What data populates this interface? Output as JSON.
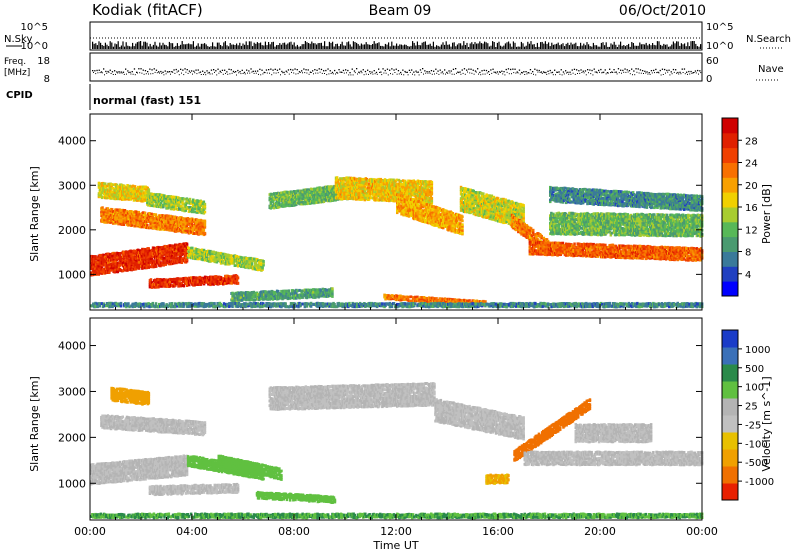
{
  "header": {
    "station": "Kodiak (fitACF)",
    "beam": "Beam 09",
    "date": "06/Oct/2010"
  },
  "strips": {
    "nsky_label": "N.Sky",
    "nsearch_label": "N.Search",
    "noise_ticks": [
      "10^5",
      "10^0"
    ],
    "freq_label_1": "Freq.",
    "freq_label_2": "[MHz]",
    "freq_ticks": [
      "18",
      "8"
    ],
    "nave_label": "Nave",
    "nave_ticks": [
      "60",
      "0"
    ],
    "cpid_label": "CPID",
    "cpid_value": "normal (fast) 151"
  },
  "colors": {
    "power_scale": [
      "#0000ff",
      "#2040c0",
      "#3a7a9a",
      "#4a9a70",
      "#58b858",
      "#a8cc30",
      "#f0d000",
      "#f8a000",
      "#f87000",
      "#f04000",
      "#e02000",
      "#d00000"
    ],
    "velocity_scale": [
      "#1a3cc8",
      "#3a70b8",
      "#2a8a4a",
      "#60c040",
      "#b4b4b4",
      "#c0c0c0",
      "#e8c000",
      "#f0a000",
      "#f07000",
      "#e82000"
    ]
  },
  "chart_data": [
    {
      "type": "heatmap",
      "panel": "power",
      "xlabel": "",
      "ylabel": "Slant Range [km]",
      "x_ticks": [
        "00:00",
        "04:00",
        "08:00",
        "12:00",
        "16:00",
        "20:00",
        "00:00"
      ],
      "xlim_hours": [
        0,
        24
      ],
      "y_ticks": [
        "1000",
        "2000",
        "3000",
        "4000"
      ],
      "ylim": [
        200,
        4600
      ],
      "colorbar_label": "Power [dB]",
      "colorbar_ticks": [
        "4",
        "8",
        "12",
        "16",
        "20",
        "24",
        "28"
      ],
      "clim": [
        0,
        32
      ],
      "regions": [
        {
          "t0": 0.0,
          "t1": 3.8,
          "r_center_start": 1200,
          "r_center_end": 1500,
          "thick": 450,
          "value": 27
        },
        {
          "t0": 3.8,
          "t1": 6.8,
          "r_center_start": 1500,
          "r_center_end": 1200,
          "thick": 250,
          "value": 14
        },
        {
          "t0": 2.3,
          "t1": 5.8,
          "r_center_start": 800,
          "r_center_end": 900,
          "thick": 200,
          "value": 27
        },
        {
          "t0": 0.4,
          "t1": 4.5,
          "r_center_start": 2350,
          "r_center_end": 2050,
          "thick": 350,
          "value": 22
        },
        {
          "t0": 0.3,
          "t1": 2.3,
          "r_center_start": 2900,
          "r_center_end": 2800,
          "thick": 350,
          "value": 17
        },
        {
          "t0": 2.2,
          "t1": 4.5,
          "r_center_start": 2700,
          "r_center_end": 2500,
          "thick": 300,
          "value": 14
        },
        {
          "t0": 5.5,
          "t1": 9.5,
          "r_center_start": 500,
          "r_center_end": 600,
          "thick": 200,
          "value": 10
        },
        {
          "t0": 7.0,
          "t1": 10.5,
          "r_center_start": 2650,
          "r_center_end": 2900,
          "thick": 350,
          "value": 12
        },
        {
          "t0": 9.6,
          "t1": 13.4,
          "r_center_start": 2950,
          "r_center_end": 2850,
          "thick": 500,
          "value": 18
        },
        {
          "t0": 12.0,
          "t1": 14.6,
          "r_center_start": 2600,
          "r_center_end": 2100,
          "thick": 450,
          "value": 20
        },
        {
          "t0": 14.5,
          "t1": 17.0,
          "r_center_start": 2700,
          "r_center_end": 2300,
          "thick": 550,
          "value": 16
        },
        {
          "t0": 11.5,
          "t1": 15.5,
          "r_center_start": 500,
          "r_center_end": 350,
          "thick": 120,
          "value": 22
        },
        {
          "t0": 16.5,
          "t1": 18.0,
          "r_center_start": 2200,
          "r_center_end": 1600,
          "thick": 300,
          "value": 22
        },
        {
          "t0": 17.2,
          "t1": 24.0,
          "r_center_start": 1600,
          "r_center_end": 1450,
          "thick": 300,
          "value": 24
        },
        {
          "t0": 18.0,
          "t1": 24.0,
          "r_center_start": 2150,
          "r_center_end": 2100,
          "thick": 500,
          "value": 12
        },
        {
          "t0": 18.0,
          "t1": 24.0,
          "r_center_start": 2800,
          "r_center_end": 2600,
          "thick": 350,
          "value": 8
        },
        {
          "t0": 0.0,
          "t1": 24.0,
          "r_center_start": 320,
          "r_center_end": 320,
          "thick": 100,
          "value": 8
        }
      ]
    },
    {
      "type": "heatmap",
      "panel": "velocity",
      "xlabel": "Time UT",
      "ylabel": "Slant Range [km]",
      "x_ticks": [
        "00:00",
        "04:00",
        "08:00",
        "12:00",
        "16:00",
        "20:00",
        "00:00"
      ],
      "xlim_hours": [
        0,
        24
      ],
      "y_ticks": [
        "1000",
        "2000",
        "3000",
        "4000"
      ],
      "ylim": [
        200,
        4600
      ],
      "colorbar_label": "Velocity [m s^-1]",
      "colorbar_ticks": [
        "1000",
        "500",
        "100",
        "25",
        "-25",
        "-100",
        "-500",
        "-1000"
      ],
      "regions": [
        {
          "t0": 0.0,
          "t1": 3.8,
          "r_center_start": 1200,
          "r_center_end": 1400,
          "thick": 450,
          "value": 0
        },
        {
          "t0": 3.8,
          "t1": 6.8,
          "r_center_start": 1500,
          "r_center_end": 1200,
          "thick": 250,
          "value": 60
        },
        {
          "t0": 2.3,
          "t1": 5.8,
          "r_center_start": 850,
          "r_center_end": 900,
          "thick": 200,
          "value": 0
        },
        {
          "t0": 0.4,
          "t1": 4.5,
          "r_center_start": 2350,
          "r_center_end": 2200,
          "thick": 300,
          "value": 0
        },
        {
          "t0": 0.8,
          "t1": 2.3,
          "r_center_start": 2950,
          "r_center_end": 2850,
          "thick": 300,
          "value": -150
        },
        {
          "t0": 5.0,
          "t1": 7.5,
          "r_center_start": 1500,
          "r_center_end": 1200,
          "thick": 250,
          "value": 80
        },
        {
          "t0": 6.5,
          "t1": 9.6,
          "r_center_start": 750,
          "r_center_end": 650,
          "thick": 150,
          "value": 60
        },
        {
          "t0": 7.0,
          "t1": 13.5,
          "r_center_start": 2850,
          "r_center_end": 2950,
          "thick": 500,
          "value": 0
        },
        {
          "t0": 13.5,
          "t1": 17.0,
          "r_center_start": 2600,
          "r_center_end": 2200,
          "thick": 500,
          "value": 0
        },
        {
          "t0": 16.6,
          "t1": 19.6,
          "r_center_start": 1600,
          "r_center_end": 2750,
          "thick": 250,
          "value": -700
        },
        {
          "t0": 15.5,
          "t1": 16.4,
          "r_center_start": 1100,
          "r_center_end": 1100,
          "thick": 200,
          "value": -100
        },
        {
          "t0": 17.0,
          "t1": 24.0,
          "r_center_start": 1550,
          "r_center_end": 1550,
          "thick": 300,
          "value": 0
        },
        {
          "t0": 19.0,
          "t1": 22.0,
          "r_center_start": 2100,
          "r_center_end": 2100,
          "thick": 400,
          "value": 0
        },
        {
          "t0": 0.0,
          "t1": 24.0,
          "r_center_start": 300,
          "r_center_end": 300,
          "thick": 100,
          "value": 100
        }
      ]
    }
  ]
}
